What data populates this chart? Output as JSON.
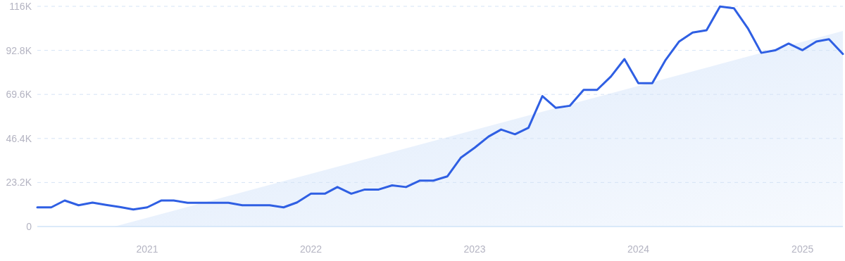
{
  "chart_data": {
    "type": "line",
    "x": [
      "2020-05",
      "2020-06",
      "2020-07",
      "2020-08",
      "2020-09",
      "2020-10",
      "2020-11",
      "2020-12",
      "2021-01",
      "2021-02",
      "2021-03",
      "2021-04",
      "2021-05",
      "2021-06",
      "2021-07",
      "2021-08",
      "2021-09",
      "2021-10",
      "2021-11",
      "2021-12",
      "2022-01",
      "2022-02",
      "2022-03",
      "2022-04",
      "2022-05",
      "2022-06",
      "2022-07",
      "2022-08",
      "2022-09",
      "2022-10",
      "2022-11",
      "2022-12",
      "2023-01",
      "2023-02",
      "2023-03",
      "2023-04",
      "2023-05",
      "2023-06",
      "2023-07",
      "2023-08",
      "2023-09",
      "2023-10",
      "2023-11",
      "2023-12",
      "2024-01",
      "2024-02",
      "2024-03",
      "2024-04",
      "2024-05",
      "2024-06",
      "2024-07",
      "2024-08",
      "2024-09",
      "2024-10",
      "2024-11",
      "2024-12",
      "2025-01",
      "2025-02",
      "2025-03",
      "2025-04"
    ],
    "series": [
      {
        "type": "area",
        "color": "#dce9fb",
        "x": [
          "2020-10-20",
          "2025-04"
        ],
        "values": [
          0,
          103000
        ]
      },
      {
        "color": "#2f5fe3",
        "values": [
          10100,
          10100,
          13700,
          11200,
          12600,
          11400,
          10300,
          9000,
          10100,
          13700,
          13700,
          12500,
          12500,
          12500,
          12500,
          11200,
          11200,
          11200,
          10100,
          12700,
          17300,
          17300,
          20800,
          17300,
          19500,
          19500,
          21700,
          20800,
          24200,
          24200,
          26400,
          36200,
          41500,
          47400,
          51100,
          48600,
          52000,
          68700,
          62500,
          63600,
          72000,
          72000,
          79100,
          88200,
          75500,
          75500,
          87500,
          97500,
          102200,
          103400,
          115900,
          115000,
          104500,
          91500,
          92800,
          96400,
          92900,
          97500,
          98700,
          90900
        ]
      }
    ],
    "xlim": [
      "2020-05",
      "2025-04"
    ],
    "xticks": [
      "2021",
      "2022",
      "2023",
      "2024",
      "2025"
    ],
    "ylim": [
      0,
      116000
    ],
    "yticks": [
      {
        "value": 0,
        "label": "0"
      },
      {
        "value": 23200,
        "label": "23.2K"
      },
      {
        "value": 46400,
        "label": "46.4K"
      },
      {
        "value": 69600,
        "label": "69.6K"
      },
      {
        "value": 92800,
        "label": "92.8K"
      },
      {
        "value": 116000,
        "label": "116K"
      }
    ],
    "grid": "y",
    "line_style": "solid",
    "marker": "none"
  }
}
